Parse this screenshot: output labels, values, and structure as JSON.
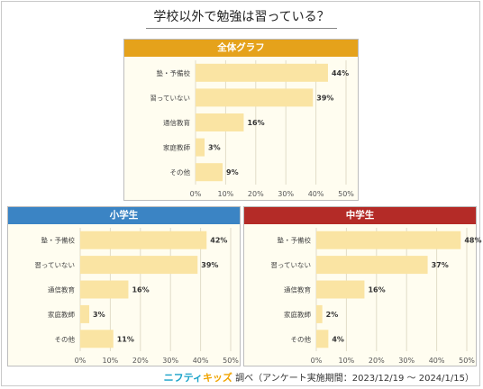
{
  "title": "学校以外で勉強は習っている？",
  "colors": {
    "bar": "#fae4a3",
    "grid": "#e2dcc8",
    "panel_bg": "#fffdf0",
    "head_all": "#e5a21b",
    "head_elem": "#3b84c4",
    "head_mid": "#b42b27"
  },
  "chart_data": [
    {
      "type": "bar",
      "orientation": "horizontal",
      "title": "全体グラフ",
      "categories": [
        "塾・予備校",
        "習っていない",
        "通信教育",
        "家庭教師",
        "その他"
      ],
      "values": [
        44,
        39,
        16,
        3,
        9
      ],
      "value_labels": [
        "44%",
        "39%",
        "16%",
        "3%",
        "9%"
      ],
      "xlim": [
        0,
        50
      ],
      "ticks": [
        "0%",
        "10%",
        "20%",
        "30%",
        "40%",
        "50%"
      ],
      "grid": true
    },
    {
      "type": "bar",
      "orientation": "horizontal",
      "title": "小学生",
      "categories": [
        "塾・予備校",
        "習っていない",
        "通信教育",
        "家庭教師",
        "その他"
      ],
      "values": [
        42,
        39,
        16,
        3,
        11
      ],
      "value_labels": [
        "42%",
        "39%",
        "16%",
        "3%",
        "11%"
      ],
      "xlim": [
        0,
        50
      ],
      "ticks": [
        "0%",
        "10%",
        "20%",
        "30%",
        "40%",
        "50%"
      ],
      "grid": true
    },
    {
      "type": "bar",
      "orientation": "horizontal",
      "title": "中学生",
      "categories": [
        "塾・予備校",
        "習っていない",
        "通信教育",
        "家庭教師",
        "その他"
      ],
      "values": [
        48,
        37,
        16,
        2,
        4
      ],
      "value_labels": [
        "48%",
        "37%",
        "16%",
        "2%",
        "4%"
      ],
      "xlim": [
        0,
        50
      ],
      "ticks": [
        "0%",
        "10%",
        "20%",
        "30%",
        "40%",
        "50%"
      ],
      "grid": true
    }
  ],
  "footer": {
    "brand_part1": "ニフティ",
    "brand_part2": "キッズ",
    "text": "調べ（アンケート実施期間：2023/12/19 ～ 2024/1/15）"
  }
}
